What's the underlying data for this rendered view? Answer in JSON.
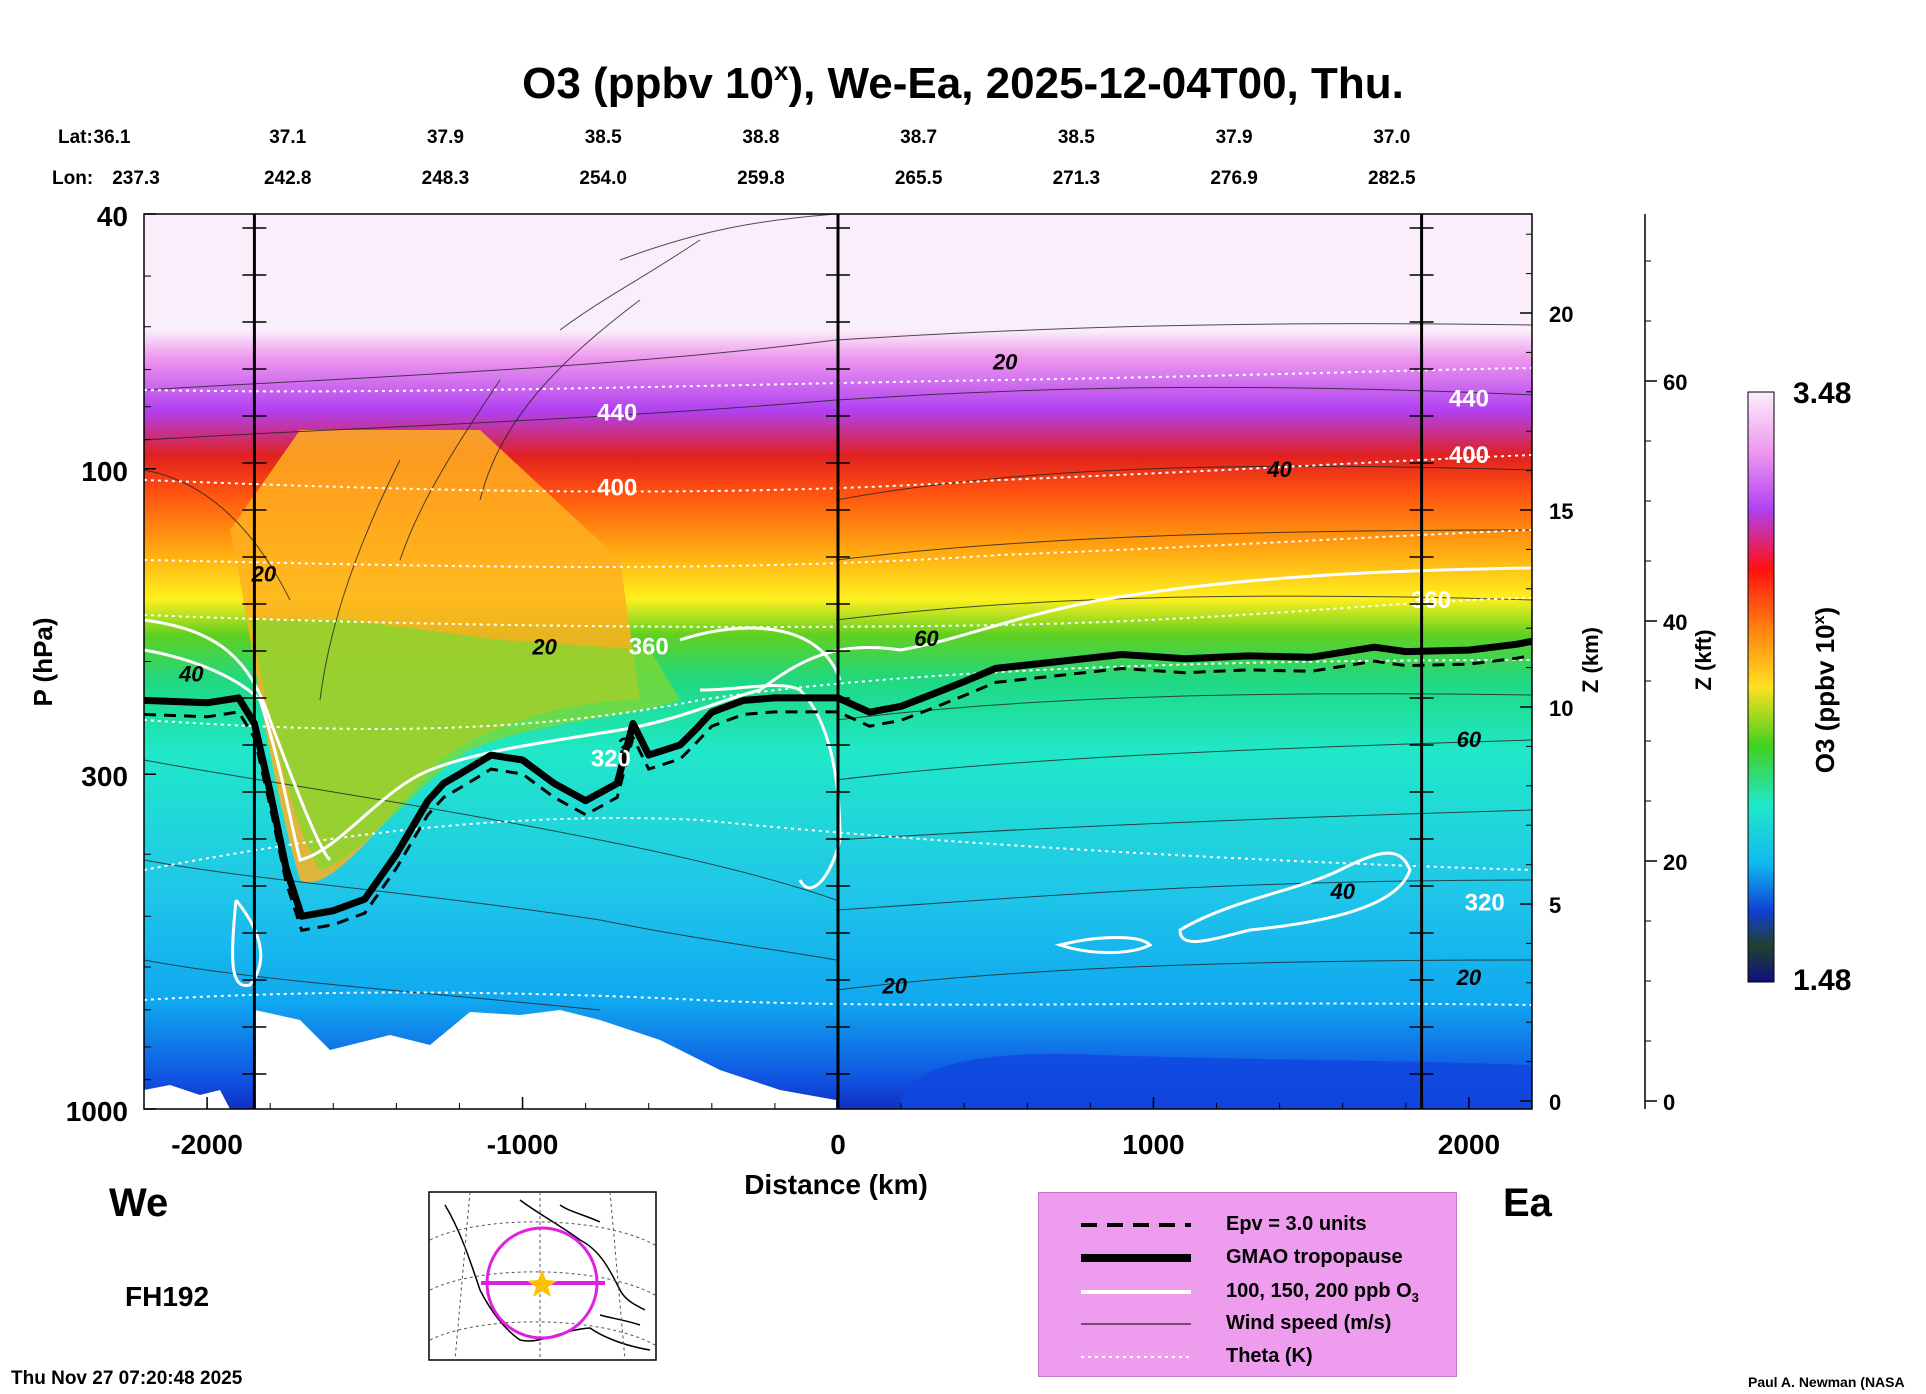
{
  "chart_data": {
    "type": "heatmap",
    "title_prefix": "O3 (ppbv 10",
    "title_sup": "x",
    "title_suffix": "), We-Ea, 2025-12-04T00, Thu.",
    "xlabel": "Distance (km)",
    "ylabel": "P (hPa)",
    "z_km_label": "Z (km)",
    "z_kft_label": "Z (kft)",
    "colorbar_label": "O3 (ppbv 10",
    "colorbar_label_sup": "x",
    "colorbar_label_end": ")",
    "colorbar_range": [
      1.48,
      3.48
    ],
    "colorbar_max_label": "3.48",
    "colorbar_min_label": "1.48",
    "xlim": [
      -2200,
      2200
    ],
    "ylim_hpa": [
      1000,
      40
    ],
    "x_ticks": [
      -2000,
      -1000,
      0,
      1000,
      2000
    ],
    "y_ticks_hpa": [
      40,
      100,
      300,
      1000
    ],
    "z_km_ticks": [
      0,
      5,
      10,
      15,
      20
    ],
    "z_kft_ticks": [
      0,
      20,
      40,
      60
    ],
    "section_lines_km": [
      -1850,
      0,
      1850
    ],
    "lat_label": "Lat:",
    "lon_label": "Lon:",
    "lat": [
      "36.1",
      "37.1",
      "37.9",
      "38.5",
      "38.8",
      "38.7",
      "38.5",
      "37.9",
      "37.0"
    ],
    "lon": [
      "237.3",
      "242.8",
      "248.3",
      "254.0",
      "259.8",
      "265.5",
      "271.3",
      "276.9",
      "282.5"
    ],
    "lat_lon_km": [
      -2200,
      -1700,
      -1200,
      -700,
      -200,
      300,
      800,
      1300,
      1800
    ],
    "left_label": "We",
    "right_label": "Ea",
    "forecast_hour": "FH192",
    "tropopause_hpa": [
      [
        -2200,
        230
      ],
      [
        -2000,
        232
      ],
      [
        -1900,
        228
      ],
      [
        -1850,
        250
      ],
      [
        -1800,
        320
      ],
      [
        -1750,
        420
      ],
      [
        -1700,
        500
      ],
      [
        -1600,
        490
      ],
      [
        -1500,
        470
      ],
      [
        -1400,
        400
      ],
      [
        -1300,
        330
      ],
      [
        -1250,
        310
      ],
      [
        -1200,
        300
      ],
      [
        -1150,
        290
      ],
      [
        -1100,
        280
      ],
      [
        -1000,
        285
      ],
      [
        -900,
        310
      ],
      [
        -800,
        330
      ],
      [
        -700,
        310
      ],
      [
        -650,
        250
      ],
      [
        -600,
        280
      ],
      [
        -500,
        270
      ],
      [
        -450,
        255
      ],
      [
        -400,
        240
      ],
      [
        -300,
        230
      ],
      [
        -200,
        228
      ],
      [
        0,
        228
      ],
      [
        100,
        240
      ],
      [
        200,
        235
      ],
      [
        300,
        225
      ],
      [
        400,
        215
      ],
      [
        500,
        205
      ],
      [
        700,
        200
      ],
      [
        900,
        195
      ],
      [
        1100,
        198
      ],
      [
        1300,
        196
      ],
      [
        1500,
        197
      ],
      [
        1700,
        190
      ],
      [
        1800,
        193
      ],
      [
        2000,
        192
      ],
      [
        2150,
        188
      ],
      [
        2200,
        186
      ]
    ],
    "theta_labels": [
      {
        "text": "440",
        "x_km": -700,
        "p_hpa": 84
      },
      {
        "text": "400",
        "x_km": -700,
        "p_hpa": 110
      },
      {
        "text": "360",
        "x_km": -600,
        "p_hpa": 195
      },
      {
        "text": "320",
        "x_km": -720,
        "p_hpa": 292
      },
      {
        "text": "440",
        "x_km": 2000,
        "p_hpa": 80
      },
      {
        "text": "400",
        "x_km": 2000,
        "p_hpa": 98
      },
      {
        "text": "360",
        "x_km": 1880,
        "p_hpa": 165
      },
      {
        "text": "320",
        "x_km": 2050,
        "p_hpa": 490
      }
    ],
    "wind_labels": [
      {
        "text": "20",
        "x_km": 530,
        "p_hpa": 70
      },
      {
        "text": "40",
        "x_km": 1400,
        "p_hpa": 103
      },
      {
        "text": "60",
        "x_km": 280,
        "p_hpa": 189
      },
      {
        "text": "20",
        "x_km": -930,
        "p_hpa": 195
      },
      {
        "text": "20",
        "x_km": -1820,
        "p_hpa": 150
      },
      {
        "text": "40",
        "x_km": -2050,
        "p_hpa": 215
      },
      {
        "text": "60",
        "x_km": 2000,
        "p_hpa": 272
      },
      {
        "text": "40",
        "x_km": 1600,
        "p_hpa": 470
      },
      {
        "text": "20",
        "x_km": 180,
        "p_hpa": 660
      },
      {
        "text": "20",
        "x_km": 2000,
        "p_hpa": 640
      },
      {
        "text": "?",
        "x_km": -680,
        "p_hpa": 278
      }
    ]
  },
  "legend": {
    "items": [
      {
        "label": "Epv = 3.0 units"
      },
      {
        "label": "GMAO tropopause"
      },
      {
        "label": "100, 150, 200 ppb O"
      },
      {
        "label": "Wind speed (m/s)"
      },
      {
        "label": "Theta (K)"
      }
    ],
    "o3_sub": "3"
  },
  "footer": {
    "timestamp": "Thu Nov 27 07:20:48 2025",
    "credit": "Paul A. Newman (NASA"
  },
  "colors": {
    "tropopause": "#000000",
    "ozone_contour": "#ffffff",
    "map_circle": "#e020e0",
    "map_star": "#ffc000",
    "legend_bg": "#ee9cee"
  }
}
